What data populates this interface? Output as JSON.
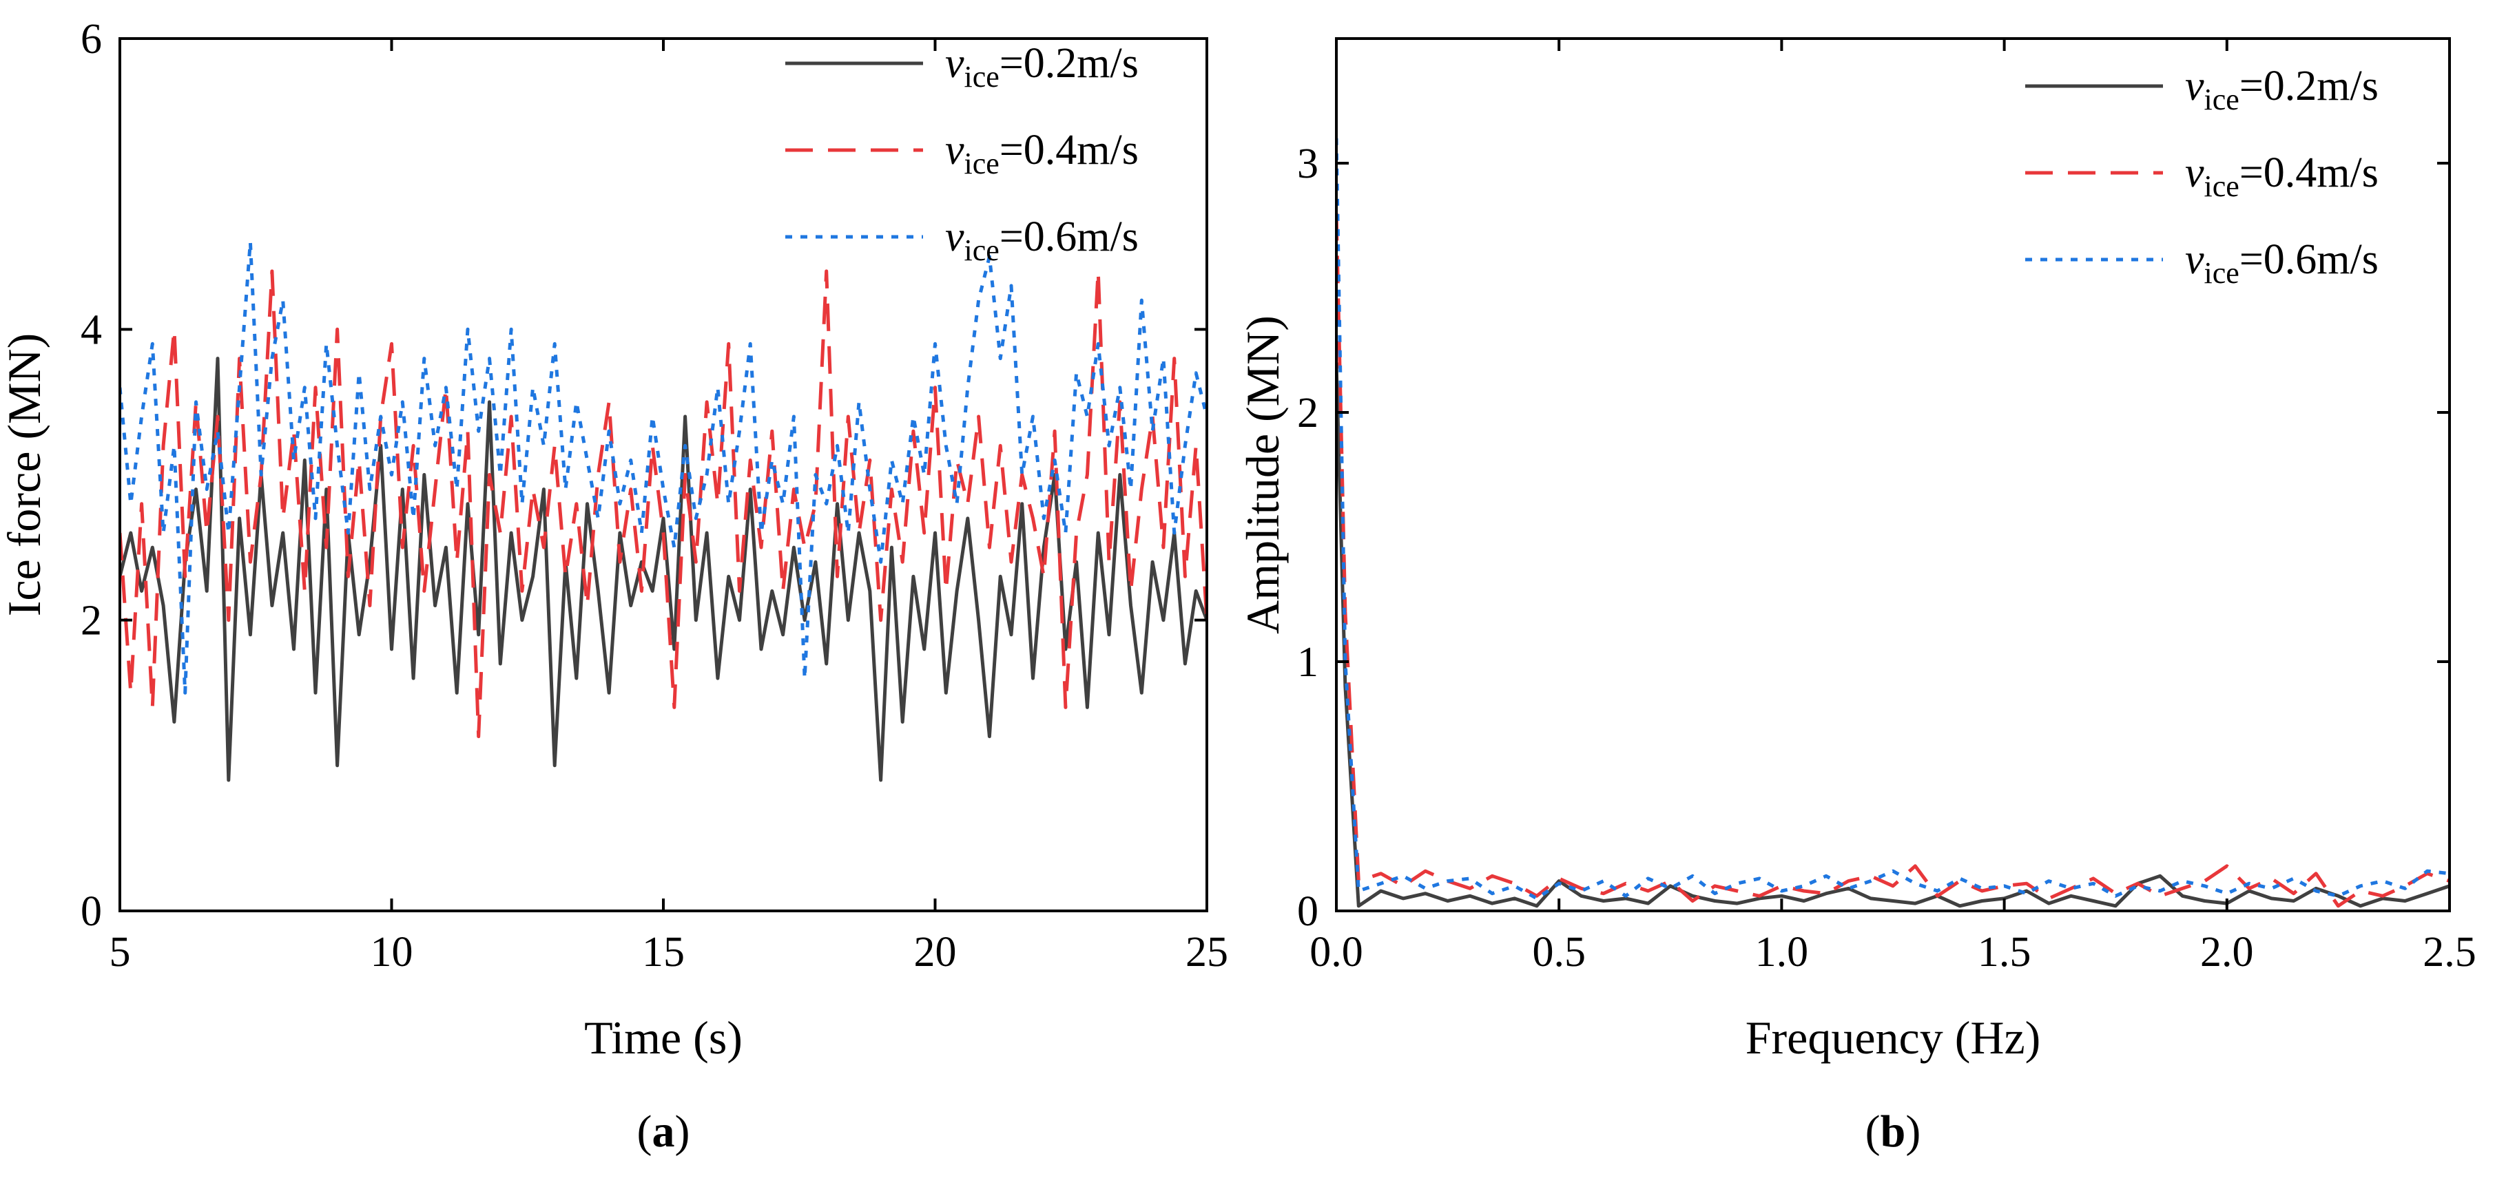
{
  "chart_data": [
    {
      "type": "line",
      "panel_label": "(a)",
      "panel_letter": "a",
      "xlabel": "Time (s)",
      "ylabel": "Ice force (MN)",
      "xlim": [
        5,
        25
      ],
      "ylim": [
        0,
        6
      ],
      "xticks": [
        "5",
        "10",
        "15",
        "20",
        "25"
      ],
      "yticks": [
        "0",
        "2",
        "4",
        "6"
      ],
      "legend_position": "top-right",
      "series": [
        {
          "name_var": "v",
          "name_sub": "ice",
          "name_val": "=0.2m/s",
          "color": "#404040",
          "style": "solid",
          "x": [
            5.0,
            5.2,
            5.4,
            5.6,
            5.8,
            6.0,
            6.2,
            6.4,
            6.6,
            6.8,
            7.0,
            7.2,
            7.4,
            7.6,
            7.8,
            8.0,
            8.2,
            8.4,
            8.6,
            8.8,
            9.0,
            9.2,
            9.4,
            9.6,
            9.8,
            10.0,
            10.2,
            10.4,
            10.6,
            10.8,
            11.0,
            11.2,
            11.4,
            11.6,
            11.8,
            12.0,
            12.2,
            12.4,
            12.6,
            12.8,
            13.0,
            13.2,
            13.4,
            13.6,
            13.8,
            14.0,
            14.2,
            14.4,
            14.6,
            14.8,
            15.0,
            15.2,
            15.4,
            15.6,
            15.8,
            16.0,
            16.2,
            16.4,
            16.6,
            16.8,
            17.0,
            17.2,
            17.4,
            17.6,
            17.8,
            18.0,
            18.2,
            18.4,
            18.6,
            18.8,
            19.0,
            19.2,
            19.4,
            19.6,
            19.8,
            20.0,
            20.2,
            20.4,
            20.6,
            20.8,
            21.0,
            21.2,
            21.4,
            21.6,
            21.8,
            22.0,
            22.2,
            22.4,
            22.6,
            22.8,
            23.0,
            23.2,
            23.4,
            23.6,
            23.8,
            24.0,
            24.2,
            24.4,
            24.6,
            24.8,
            25.0
          ],
          "values": [
            2.3,
            2.6,
            2.2,
            2.5,
            2.1,
            1.3,
            2.4,
            2.9,
            2.2,
            3.8,
            0.9,
            2.7,
            1.9,
            3.0,
            2.1,
            2.6,
            1.8,
            3.1,
            1.5,
            2.9,
            1.0,
            2.6,
            1.9,
            2.4,
            3.2,
            1.8,
            2.9,
            1.6,
            3.0,
            2.1,
            2.5,
            1.5,
            2.8,
            1.9,
            3.5,
            1.7,
            2.6,
            2.0,
            2.3,
            2.9,
            1.0,
            2.4,
            1.6,
            2.8,
            2.2,
            1.5,
            2.6,
            2.1,
            2.4,
            2.2,
            2.7,
            1.8,
            3.4,
            2.0,
            2.6,
            1.6,
            2.3,
            2.0,
            2.9,
            1.8,
            2.2,
            1.9,
            2.5,
            2.0,
            2.4,
            1.7,
            2.8,
            2.0,
            2.6,
            2.2,
            0.9,
            2.5,
            1.3,
            2.3,
            1.8,
            2.6,
            1.5,
            2.2,
            2.7,
            2.0,
            1.2,
            2.3,
            1.9,
            2.8,
            1.6,
            2.5,
            3.0,
            1.8,
            2.4,
            1.4,
            2.6,
            1.9,
            3.0,
            2.1,
            1.5,
            2.4,
            2.0,
            2.6,
            1.7,
            2.2,
            2.0
          ]
        },
        {
          "name_var": "v",
          "name_sub": "ice",
          "name_val": "=0.4m/s",
          "color": "#e8373a",
          "style": "dashed",
          "x": [
            5.0,
            5.2,
            5.4,
            5.6,
            5.8,
            6.0,
            6.2,
            6.4,
            6.6,
            6.8,
            7.0,
            7.2,
            7.4,
            7.6,
            7.8,
            8.0,
            8.2,
            8.4,
            8.6,
            8.8,
            9.0,
            9.2,
            9.4,
            9.6,
            9.8,
            10.0,
            10.2,
            10.4,
            10.6,
            10.8,
            11.0,
            11.2,
            11.4,
            11.6,
            11.8,
            12.0,
            12.2,
            12.4,
            12.6,
            12.8,
            13.0,
            13.2,
            13.4,
            13.6,
            13.8,
            14.0,
            14.2,
            14.4,
            14.6,
            14.8,
            15.0,
            15.2,
            15.4,
            15.6,
            15.8,
            16.0,
            16.2,
            16.4,
            16.6,
            16.8,
            17.0,
            17.2,
            17.4,
            17.6,
            17.8,
            18.0,
            18.2,
            18.4,
            18.6,
            18.8,
            19.0,
            19.2,
            19.4,
            19.6,
            19.8,
            20.0,
            20.2,
            20.4,
            20.6,
            20.8,
            21.0,
            21.2,
            21.4,
            21.6,
            21.8,
            22.0,
            22.2,
            22.4,
            22.6,
            22.8,
            23.0,
            23.2,
            23.4,
            23.6,
            23.8,
            24.0,
            24.2,
            24.4,
            24.6,
            24.8,
            25.0
          ],
          "values": [
            2.6,
            1.5,
            2.8,
            1.4,
            3.2,
            4.0,
            2.3,
            3.5,
            2.6,
            3.4,
            2.0,
            3.8,
            2.4,
            3.0,
            4.4,
            2.7,
            3.3,
            2.2,
            3.6,
            2.5,
            4.0,
            2.3,
            3.1,
            2.1,
            3.4,
            3.9,
            2.5,
            3.2,
            2.2,
            2.9,
            3.6,
            2.4,
            3.3,
            1.2,
            3.0,
            2.6,
            3.4,
            2.2,
            2.9,
            2.5,
            3.2,
            2.3,
            2.8,
            2.1,
            3.0,
            3.5,
            2.4,
            2.9,
            2.2,
            3.2,
            2.6,
            1.4,
            3.0,
            2.4,
            3.5,
            2.8,
            3.9,
            2.2,
            3.1,
            2.5,
            3.3,
            2.2,
            2.9,
            2.5,
            2.8,
            4.4,
            2.3,
            3.4,
            2.6,
            3.1,
            2.0,
            2.9,
            2.4,
            3.3,
            2.6,
            3.6,
            2.2,
            3.1,
            2.8,
            3.4,
            2.5,
            3.2,
            2.4,
            3.0,
            2.7,
            2.3,
            3.3,
            1.4,
            2.6,
            3.0,
            4.4,
            2.4,
            3.5,
            2.2,
            2.9,
            3.4,
            2.5,
            3.8,
            2.3,
            3.2,
            2.0
          ]
        },
        {
          "name_var": "v",
          "name_sub": "ice",
          "name_val": "=0.6m/s",
          "color": "#1f77e0",
          "style": "dotted",
          "x": [
            5.0,
            5.2,
            5.4,
            5.6,
            5.8,
            6.0,
            6.2,
            6.4,
            6.6,
            6.8,
            7.0,
            7.2,
            7.4,
            7.6,
            7.8,
            8.0,
            8.2,
            8.4,
            8.6,
            8.8,
            9.0,
            9.2,
            9.4,
            9.6,
            9.8,
            10.0,
            10.2,
            10.4,
            10.6,
            10.8,
            11.0,
            11.2,
            11.4,
            11.6,
            11.8,
            12.0,
            12.2,
            12.4,
            12.6,
            12.8,
            13.0,
            13.2,
            13.4,
            13.6,
            13.8,
            14.0,
            14.2,
            14.4,
            14.6,
            14.8,
            15.0,
            15.2,
            15.4,
            15.6,
            15.8,
            16.0,
            16.2,
            16.4,
            16.6,
            16.8,
            17.0,
            17.2,
            17.4,
            17.6,
            17.8,
            18.0,
            18.2,
            18.4,
            18.6,
            18.8,
            19.0,
            19.2,
            19.4,
            19.6,
            19.8,
            20.0,
            20.2,
            20.4,
            20.6,
            20.8,
            21.0,
            21.2,
            21.4,
            21.6,
            21.8,
            22.0,
            22.2,
            22.4,
            22.6,
            22.8,
            23.0,
            23.2,
            23.4,
            23.6,
            23.8,
            24.0,
            24.2,
            24.4,
            24.6,
            24.8,
            25.0
          ],
          "values": [
            3.6,
            2.8,
            3.4,
            3.9,
            2.6,
            3.2,
            1.5,
            3.5,
            2.9,
            3.3,
            2.6,
            3.6,
            4.6,
            3.0,
            3.8,
            4.2,
            3.1,
            3.6,
            2.7,
            3.9,
            3.2,
            2.6,
            3.7,
            2.9,
            3.4,
            3.0,
            3.5,
            2.7,
            3.8,
            3.2,
            3.6,
            2.9,
            4.0,
            3.3,
            3.8,
            3.0,
            4.0,
            2.8,
            3.6,
            3.2,
            3.9,
            2.9,
            3.5,
            3.1,
            2.7,
            3.3,
            2.8,
            3.1,
            2.6,
            3.4,
            2.9,
            2.5,
            3.2,
            2.7,
            3.0,
            3.6,
            2.8,
            3.3,
            3.9,
            2.6,
            3.1,
            2.8,
            3.4,
            1.6,
            3.0,
            2.8,
            3.2,
            2.6,
            3.5,
            2.9,
            2.4,
            3.1,
            2.8,
            3.4,
            3.0,
            3.9,
            3.2,
            2.8,
            3.6,
            4.2,
            4.5,
            3.8,
            4.3,
            3.0,
            3.4,
            2.7,
            3.1,
            2.6,
            3.7,
            3.4,
            3.9,
            3.2,
            3.6,
            2.9,
            4.2,
            3.3,
            3.8,
            2.6,
            3.2,
            3.7,
            3.4
          ]
        }
      ]
    },
    {
      "type": "line",
      "panel_label": "(b)",
      "panel_letter": "b",
      "xlabel": "Frequency (Hz)",
      "ylabel": "Amplitude (MN)",
      "xlim": [
        0,
        2.5
      ],
      "ylim": [
        0,
        3.5
      ],
      "xticks": [
        "0.0",
        "0.5",
        "1.0",
        "1.5",
        "2.0",
        "2.5"
      ],
      "yticks": [
        "0",
        "1",
        "2",
        "3"
      ],
      "legend_position": "top-right",
      "series": [
        {
          "name_var": "v",
          "name_sub": "ice",
          "name_val": "=0.2m/s",
          "color": "#404040",
          "style": "solid",
          "x": [
            0.0,
            0.02,
            0.05,
            0.1,
            0.15,
            0.2,
            0.25,
            0.3,
            0.35,
            0.4,
            0.45,
            0.5,
            0.55,
            0.6,
            0.65,
            0.7,
            0.75,
            0.8,
            0.85,
            0.9,
            0.95,
            1.0,
            1.05,
            1.1,
            1.15,
            1.2,
            1.25,
            1.3,
            1.35,
            1.4,
            1.45,
            1.5,
            1.55,
            1.6,
            1.65,
            1.7,
            1.75,
            1.8,
            1.85,
            1.9,
            1.95,
            2.0,
            2.05,
            2.1,
            2.15,
            2.2,
            2.25,
            2.3,
            2.35,
            2.4,
            2.45,
            2.5
          ],
          "values": [
            2.2,
            0.9,
            0.02,
            0.08,
            0.05,
            0.07,
            0.04,
            0.06,
            0.03,
            0.05,
            0.02,
            0.12,
            0.06,
            0.04,
            0.05,
            0.03,
            0.1,
            0.06,
            0.04,
            0.03,
            0.05,
            0.06,
            0.04,
            0.07,
            0.09,
            0.05,
            0.04,
            0.03,
            0.06,
            0.02,
            0.04,
            0.05,
            0.08,
            0.03,
            0.06,
            0.04,
            0.02,
            0.11,
            0.14,
            0.06,
            0.04,
            0.03,
            0.08,
            0.05,
            0.04,
            0.09,
            0.06,
            0.02,
            0.05,
            0.04,
            0.07,
            0.1
          ]
        },
        {
          "name_var": "v",
          "name_sub": "ice",
          "name_val": "=0.4m/s",
          "color": "#e8373a",
          "style": "dashed",
          "x": [
            0.0,
            0.02,
            0.05,
            0.1,
            0.15,
            0.2,
            0.25,
            0.3,
            0.35,
            0.4,
            0.45,
            0.5,
            0.55,
            0.6,
            0.65,
            0.7,
            0.75,
            0.8,
            0.85,
            0.9,
            0.95,
            1.0,
            1.05,
            1.1,
            1.15,
            1.2,
            1.25,
            1.3,
            1.35,
            1.4,
            1.45,
            1.5,
            1.55,
            1.6,
            1.65,
            1.7,
            1.75,
            1.8,
            1.85,
            1.9,
            1.95,
            2.0,
            2.05,
            2.1,
            2.15,
            2.2,
            2.25,
            2.3,
            2.35,
            2.4,
            2.45,
            2.5
          ],
          "values": [
            2.8,
            1.2,
            0.12,
            0.15,
            0.1,
            0.16,
            0.12,
            0.09,
            0.14,
            0.11,
            0.06,
            0.13,
            0.09,
            0.07,
            0.11,
            0.08,
            0.12,
            0.04,
            0.1,
            0.08,
            0.06,
            0.1,
            0.08,
            0.07,
            0.12,
            0.14,
            0.1,
            0.18,
            0.06,
            0.12,
            0.08,
            0.1,
            0.11,
            0.05,
            0.09,
            0.13,
            0.07,
            0.11,
            0.06,
            0.09,
            0.12,
            0.18,
            0.09,
            0.13,
            0.07,
            0.15,
            0.02,
            0.08,
            0.06,
            0.1,
            0.15,
            0.12
          ]
        },
        {
          "name_var": "v",
          "name_sub": "ice",
          "name_val": "=0.6m/s",
          "color": "#1f77e0",
          "style": "dotted",
          "x": [
            0.0,
            0.02,
            0.05,
            0.1,
            0.15,
            0.2,
            0.25,
            0.3,
            0.35,
            0.4,
            0.45,
            0.5,
            0.55,
            0.6,
            0.65,
            0.7,
            0.75,
            0.8,
            0.85,
            0.9,
            0.95,
            1.0,
            1.05,
            1.1,
            1.15,
            1.2,
            1.25,
            1.3,
            1.35,
            1.4,
            1.45,
            1.5,
            1.55,
            1.6,
            1.65,
            1.7,
            1.75,
            1.8,
            1.85,
            1.9,
            1.95,
            2.0,
            2.05,
            2.1,
            2.15,
            2.2,
            2.25,
            2.3,
            2.35,
            2.4,
            2.45,
            2.5
          ],
          "values": [
            3.1,
            1.0,
            0.08,
            0.11,
            0.14,
            0.09,
            0.12,
            0.13,
            0.07,
            0.1,
            0.05,
            0.11,
            0.08,
            0.12,
            0.06,
            0.13,
            0.09,
            0.14,
            0.07,
            0.11,
            0.13,
            0.08,
            0.1,
            0.14,
            0.09,
            0.12,
            0.16,
            0.11,
            0.08,
            0.13,
            0.09,
            0.1,
            0.07,
            0.12,
            0.09,
            0.11,
            0.06,
            0.1,
            0.08,
            0.12,
            0.1,
            0.07,
            0.11,
            0.09,
            0.13,
            0.08,
            0.06,
            0.1,
            0.12,
            0.09,
            0.16,
            0.15
          ]
        }
      ]
    }
  ]
}
